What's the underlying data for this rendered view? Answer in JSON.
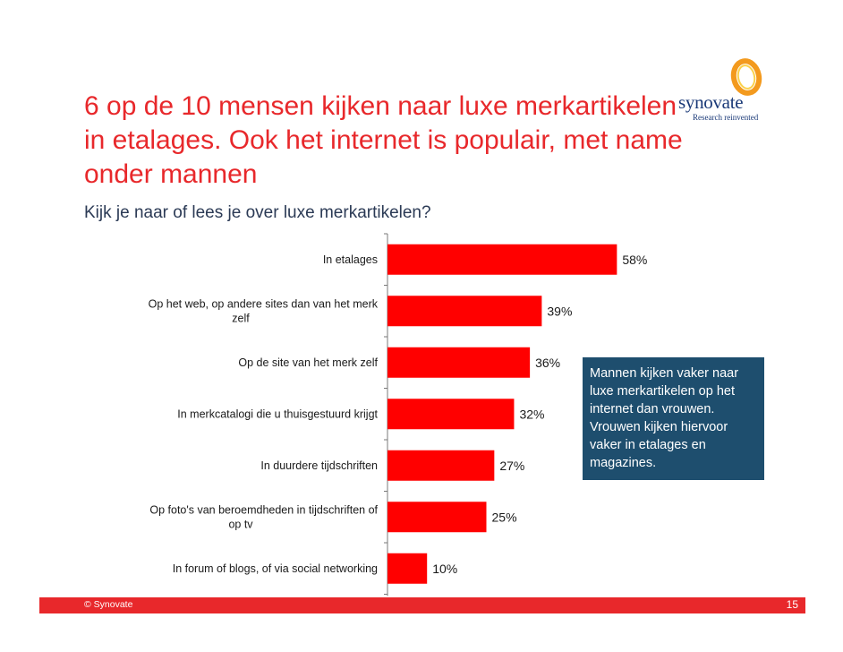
{
  "slide": {
    "title": "6 op de 10 mensen kijken naar luxe merkartikelen in etalages. Ook het internet is populair, met name onder mannen",
    "subtitle": "Kijk je naar of lees je over luxe merkartikelen?",
    "callout": "Mannen kijken vaker naar luxe merkartikelen op het internet dan vrouwen. Vrouwen kijken hiervoor vaker in etalages en magazines.",
    "footer_copyright": "© Synovate",
    "page_number": "15"
  },
  "logo": {
    "wordmark": "synovate",
    "tagline": "Research reinvented"
  },
  "colors": {
    "title": "#e8282b",
    "bar": "#ff0000",
    "callout_bg": "#1e4e6e",
    "footer_bar": "#e8282b",
    "subtitle": "#2b3a55"
  },
  "chart_data": {
    "type": "bar",
    "orientation": "horizontal",
    "categories": [
      [
        "In etalages"
      ],
      [
        "Op het web, op andere sites dan van het merk",
        "zelf"
      ],
      [
        "Op de site van het merk zelf"
      ],
      [
        "In merkcatalogi die u thuisgestuurd krijgt"
      ],
      [
        "In duurdere tijdschriften"
      ],
      [
        "Op foto's van beroemdheden in tijdschriften of",
        "op tv"
      ],
      [
        "In forum of blogs, of via social networking"
      ]
    ],
    "values": [
      58,
      39,
      36,
      32,
      27,
      25,
      10
    ],
    "value_labels": [
      "58%",
      "39%",
      "36%",
      "32%",
      "27%",
      "25%",
      "10%"
    ],
    "unit": "%",
    "xlim": [
      0,
      100
    ],
    "grid": false,
    "legend": "none"
  }
}
